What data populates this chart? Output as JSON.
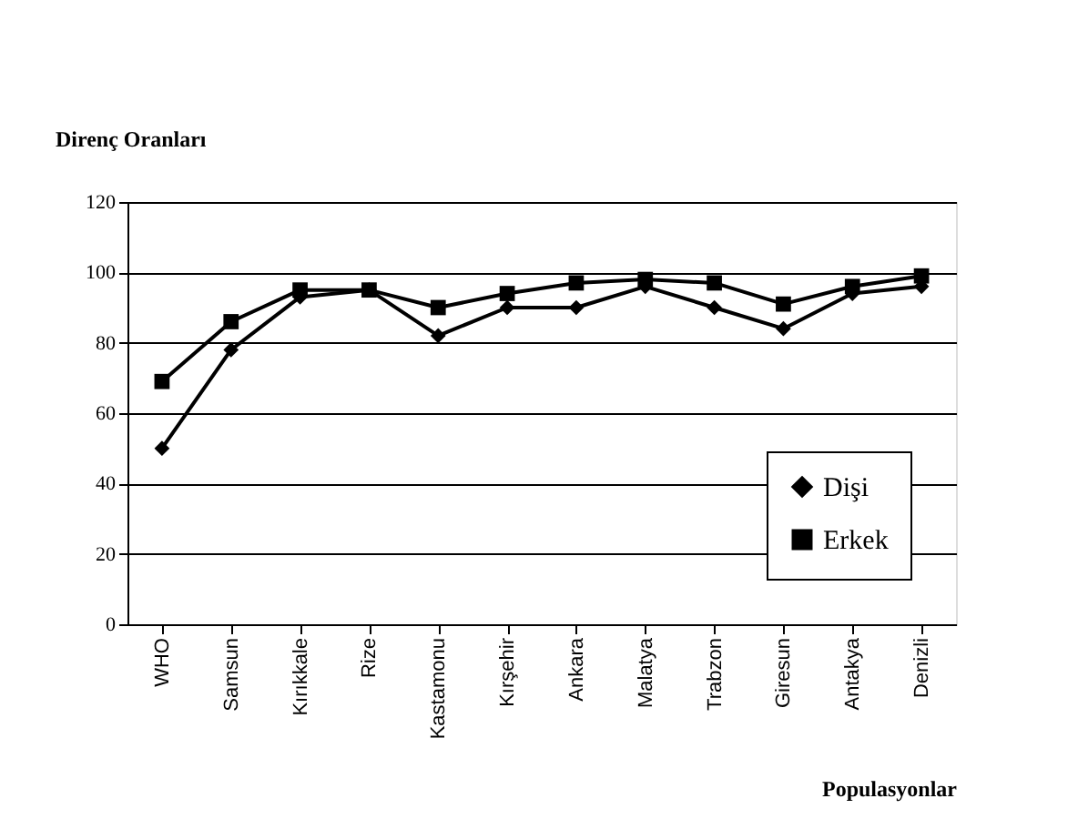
{
  "chart_data": {
    "type": "line",
    "ylabel": "Direnç Oranları",
    "xlabel": "Populasyonlar",
    "categories": [
      "WHO",
      "Samsun",
      "Kırıkkale",
      "Rize",
      "Kastamonu",
      "Kırşehir",
      "Ankara",
      "Malatya",
      "Trabzon",
      "Giresun",
      "Antakya",
      "Denizli"
    ],
    "series": [
      {
        "name": "Dişi",
        "color": "#000000",
        "marker": "diamond",
        "values": [
          50,
          78,
          93,
          95,
          82,
          90,
          90,
          96,
          90,
          84,
          94,
          96
        ]
      },
      {
        "name": "Erkek",
        "color": "#000000",
        "marker": "square",
        "values": [
          69,
          86,
          95,
          95,
          90,
          94,
          97,
          98,
          97,
          91,
          96,
          99
        ]
      }
    ],
    "ylim": [
      0,
      120
    ],
    "yticks": [
      0,
      20,
      40,
      60,
      80,
      100,
      120
    ],
    "grid": "y",
    "legend": "bottom right",
    "line_style": "solid"
  }
}
